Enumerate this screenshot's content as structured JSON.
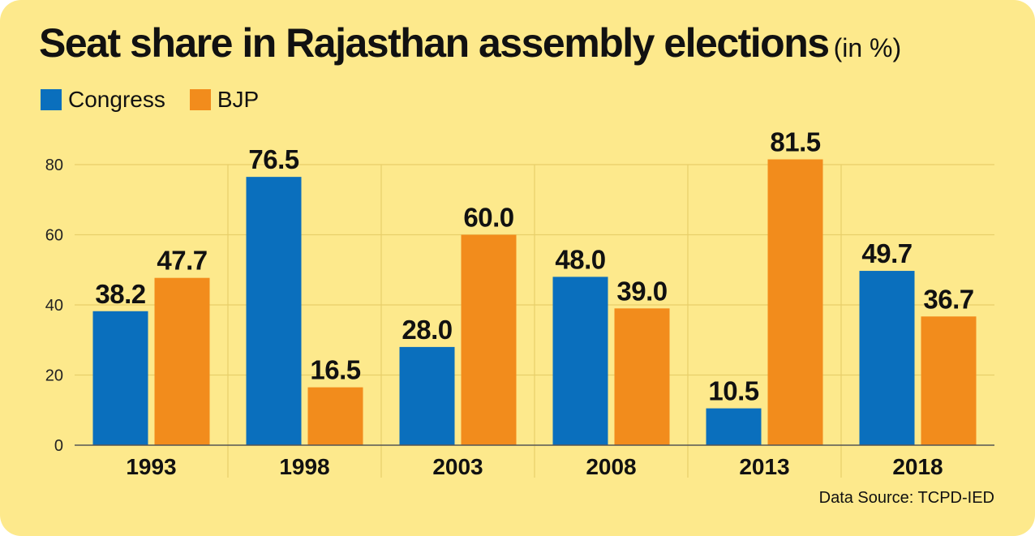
{
  "chart_data": {
    "type": "bar",
    "title": "Seat share in Rajasthan assembly elections",
    "title_unit": "(in %)",
    "categories": [
      "1993",
      "1998",
      "2003",
      "2008",
      "2013",
      "2018"
    ],
    "series": [
      {
        "name": "Congress",
        "color": "#0a6fbd",
        "values": [
          38.2,
          76.5,
          28.0,
          48.0,
          10.5,
          49.7
        ],
        "labels": [
          "38.2",
          "76.5",
          "28.0",
          "48.0",
          "10.5",
          "49.7"
        ]
      },
      {
        "name": "BJP",
        "color": "#f28c1c",
        "values": [
          47.7,
          16.5,
          60.0,
          39.0,
          81.5,
          36.7
        ],
        "labels": [
          "47.7",
          "16.5",
          "60.0",
          "39.0",
          "81.5",
          "36.7"
        ]
      }
    ],
    "yticks": [
      0,
      20,
      40,
      60,
      80
    ],
    "ylim": [
      0,
      80
    ],
    "grid": true,
    "legend": "top-left",
    "source": "Data Source: TCPD-IED"
  },
  "colors": {
    "background": "#fde98c",
    "gridline": "#e8cf6a",
    "axis": "#555555"
  }
}
